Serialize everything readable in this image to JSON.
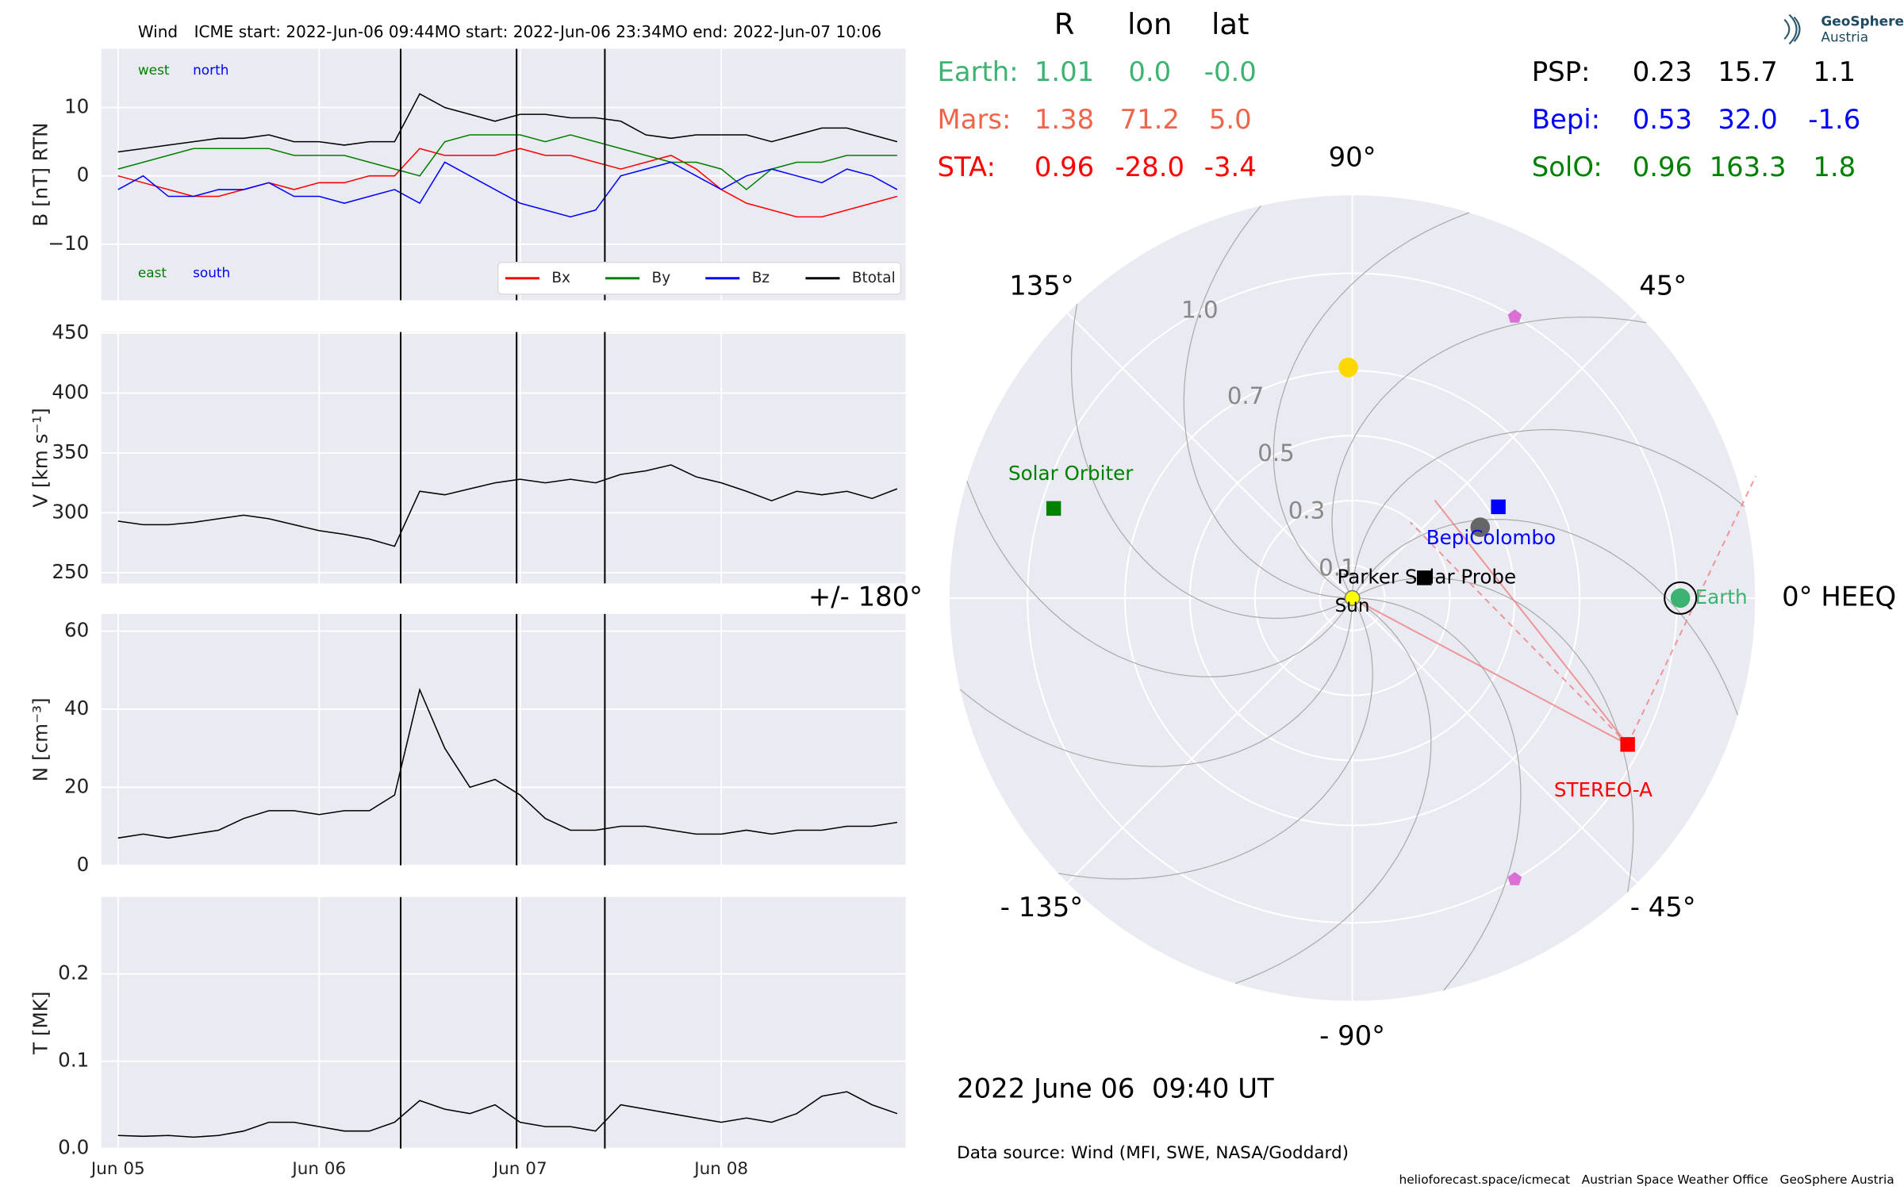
{
  "chart_data": [
    {
      "type": "line",
      "title": "Wind",
      "events": [
        {
          "label": "ICME start: 2022-Jun-06 09:44",
          "x": "2022-06-06T09:44"
        },
        {
          "label": "MO start: 2022-Jun-06 23:34",
          "x": "2022-06-06T23:34"
        },
        {
          "label": "MO end: 2022-Jun-07 10:06",
          "x": "2022-06-07T10:06"
        }
      ],
      "ylabel": "B [nT] RTN",
      "annotations": [
        {
          "text": "west",
          "color": "#008000"
        },
        {
          "text": "north",
          "color": "#0000ff"
        },
        {
          "text": "east",
          "color": "#008000"
        },
        {
          "text": "south",
          "color": "#0000ff"
        }
      ],
      "x": [
        "2022-06-05T00:00",
        "2022-06-05T03:00",
        "2022-06-05T06:00",
        "2022-06-05T09:00",
        "2022-06-05T12:00",
        "2022-06-05T15:00",
        "2022-06-05T18:00",
        "2022-06-05T21:00",
        "2022-06-06T00:00",
        "2022-06-06T03:00",
        "2022-06-06T06:00",
        "2022-06-06T09:00",
        "2022-06-06T12:00",
        "2022-06-06T15:00",
        "2022-06-06T18:00",
        "2022-06-06T21:00",
        "2022-06-07T00:00",
        "2022-06-07T03:00",
        "2022-06-07T06:00",
        "2022-06-07T09:00",
        "2022-06-07T12:00",
        "2022-06-07T15:00",
        "2022-06-07T18:00",
        "2022-06-07T21:00",
        "2022-06-08T00:00",
        "2022-06-08T03:00",
        "2022-06-08T06:00",
        "2022-06-08T09:00",
        "2022-06-08T12:00",
        "2022-06-08T15:00",
        "2022-06-08T18:00",
        "2022-06-08T21:00"
      ],
      "series": [
        {
          "name": "Bx",
          "color": "#ff0000",
          "values": [
            0,
            -1,
            -2,
            -3,
            -3,
            -2,
            -1,
            -2,
            -1,
            -1,
            0,
            0,
            4,
            3,
            3,
            3,
            4,
            3,
            3,
            2,
            1,
            2,
            3,
            1,
            -2,
            -4,
            -5,
            -6,
            -6,
            -5,
            -4,
            -3
          ]
        },
        {
          "name": "By",
          "color": "#008000",
          "values": [
            1,
            2,
            3,
            4,
            4,
            4,
            4,
            3,
            3,
            3,
            2,
            1,
            0,
            5,
            6,
            6,
            6,
            5,
            6,
            5,
            4,
            3,
            2,
            2,
            1,
            -2,
            1,
            2,
            2,
            3,
            3,
            3
          ]
        },
        {
          "name": "Bz",
          "color": "#0000ff",
          "values": [
            -2,
            0,
            -3,
            -3,
            -2,
            -2,
            -1,
            -3,
            -3,
            -4,
            -3,
            -2,
            -4,
            2,
            0,
            -2,
            -4,
            -5,
            -6,
            -5,
            0,
            1,
            2,
            0,
            -2,
            0,
            1,
            0,
            -1,
            1,
            0,
            -2
          ]
        },
        {
          "name": "Btotal",
          "color": "#000000",
          "values": [
            3.5,
            4,
            4.5,
            5,
            5.5,
            5.5,
            6,
            5,
            5,
            4.5,
            5,
            5,
            12,
            10,
            9,
            8,
            9,
            9,
            8.5,
            8.5,
            8,
            6,
            5.5,
            6,
            6,
            6,
            5,
            6,
            7,
            7,
            6,
            5
          ]
        }
      ],
      "ylim": [
        -18.2,
        18.6
      ],
      "yticks": [
        {
          "value": -10,
          "label": "−10"
        },
        0,
        10
      ],
      "grid": true
    },
    {
      "type": "line",
      "ylabel": "V [km s⁻¹]",
      "x": [
        "2022-06-05T00:00",
        "2022-06-05T03:00",
        "2022-06-05T06:00",
        "2022-06-05T09:00",
        "2022-06-05T12:00",
        "2022-06-05T15:00",
        "2022-06-05T18:00",
        "2022-06-05T21:00",
        "2022-06-06T00:00",
        "2022-06-06T03:00",
        "2022-06-06T06:00",
        "2022-06-06T09:00",
        "2022-06-06T12:00",
        "2022-06-06T15:00",
        "2022-06-06T18:00",
        "2022-06-06T21:00",
        "2022-06-07T00:00",
        "2022-06-07T03:00",
        "2022-06-07T06:00",
        "2022-06-07T09:00",
        "2022-06-07T12:00",
        "2022-06-07T15:00",
        "2022-06-07T18:00",
        "2022-06-07T21:00",
        "2022-06-08T00:00",
        "2022-06-08T03:00",
        "2022-06-08T06:00",
        "2022-06-08T09:00",
        "2022-06-08T12:00",
        "2022-06-08T15:00",
        "2022-06-08T18:00",
        "2022-06-08T21:00"
      ],
      "values": [
        293,
        290,
        290,
        292,
        295,
        298,
        295,
        290,
        285,
        282,
        278,
        272,
        318,
        315,
        320,
        325,
        328,
        325,
        328,
        325,
        332,
        335,
        340,
        330,
        325,
        318,
        310,
        318,
        315,
        318,
        312,
        320
      ],
      "color": "#000000",
      "ylim": [
        241,
        451
      ],
      "yticks": [
        250,
        300,
        350,
        400,
        450
      ],
      "grid": true
    },
    {
      "type": "line",
      "ylabel": "N [cm⁻³]",
      "x": [
        "2022-06-05T00:00",
        "2022-06-05T03:00",
        "2022-06-05T06:00",
        "2022-06-05T09:00",
        "2022-06-05T12:00",
        "2022-06-05T15:00",
        "2022-06-05T18:00",
        "2022-06-05T21:00",
        "2022-06-06T00:00",
        "2022-06-06T03:00",
        "2022-06-06T06:00",
        "2022-06-06T09:00",
        "2022-06-06T12:00",
        "2022-06-06T15:00",
        "2022-06-06T18:00",
        "2022-06-06T21:00",
        "2022-06-07T00:00",
        "2022-06-07T03:00",
        "2022-06-07T06:00",
        "2022-06-07T09:00",
        "2022-06-07T12:00",
        "2022-06-07T15:00",
        "2022-06-07T18:00",
        "2022-06-07T21:00",
        "2022-06-08T00:00",
        "2022-06-08T03:00",
        "2022-06-08T06:00",
        "2022-06-08T09:00",
        "2022-06-08T12:00",
        "2022-06-08T15:00",
        "2022-06-08T18:00",
        "2022-06-08T21:00"
      ],
      "values": [
        7,
        8,
        7,
        8,
        9,
        12,
        14,
        14,
        13,
        14,
        14,
        18,
        45,
        30,
        20,
        22,
        18,
        12,
        9,
        9,
        10,
        10,
        9,
        8,
        8,
        9,
        8,
        9,
        9,
        10,
        10,
        11
      ],
      "color": "#000000",
      "ylim": [
        0,
        64.4
      ],
      "yticks": [
        0,
        20,
        40,
        60
      ],
      "grid": true
    },
    {
      "type": "line",
      "ylabel": "T [MK]",
      "x": [
        "2022-06-05T00:00",
        "2022-06-05T03:00",
        "2022-06-05T06:00",
        "2022-06-05T09:00",
        "2022-06-05T12:00",
        "2022-06-05T15:00",
        "2022-06-05T18:00",
        "2022-06-05T21:00",
        "2022-06-06T00:00",
        "2022-06-06T03:00",
        "2022-06-06T06:00",
        "2022-06-06T09:00",
        "2022-06-06T12:00",
        "2022-06-06T15:00",
        "2022-06-06T18:00",
        "2022-06-06T21:00",
        "2022-06-07T00:00",
        "2022-06-07T03:00",
        "2022-06-07T06:00",
        "2022-06-07T09:00",
        "2022-06-07T12:00",
        "2022-06-07T15:00",
        "2022-06-07T18:00",
        "2022-06-07T21:00",
        "2022-06-08T00:00",
        "2022-06-08T03:00",
        "2022-06-08T06:00",
        "2022-06-08T09:00",
        "2022-06-08T12:00",
        "2022-06-08T15:00",
        "2022-06-08T18:00",
        "2022-06-08T21:00"
      ],
      "values": [
        0.015,
        0.014,
        0.015,
        0.013,
        0.015,
        0.02,
        0.03,
        0.03,
        0.025,
        0.02,
        0.02,
        0.03,
        0.055,
        0.045,
        0.04,
        0.05,
        0.03,
        0.025,
        0.025,
        0.02,
        0.05,
        0.045,
        0.04,
        0.035,
        0.03,
        0.035,
        0.03,
        0.04,
        0.06,
        0.065,
        0.05,
        0.04
      ],
      "color": "#000000",
      "ylim": [
        0,
        0.288
      ],
      "yticks": [
        {
          "value": 0,
          "label": "0.0"
        },
        0.1,
        0.2
      ],
      "grid": true,
      "xlim": [
        "2022-06-04T22:00",
        "2022-06-08T22:00"
      ],
      "xticks": [
        {
          "value": "2022-06-05T00:00",
          "label": "Jun 05"
        },
        {
          "value": "2022-06-06T00:00",
          "label": "Jun 06"
        },
        {
          "value": "2022-06-07T00:00",
          "label": "Jun 07"
        },
        {
          "value": "2022-06-08T00:00",
          "label": "Jun 08"
        }
      ]
    },
    {
      "type": "polar",
      "time_label": "2022 June 06  09:40 UT",
      "data_source": "Data source: Wind (MFI, SWE, NASA/Goddard)",
      "columns": [
        "R",
        "lon",
        "lat"
      ],
      "bodies": [
        {
          "name": "Earth:",
          "plot_label": "Earth",
          "color": "#3cb371",
          "marker": "circle",
          "r": 1.01,
          "lon": {
            "value": 0,
            "label": "0.0"
          },
          "lat": {
            "value": 0,
            "label": "-0.0"
          }
        },
        {
          "name": "Mars:",
          "color": "#f0654a",
          "r": 1.38,
          "lon": 71.2,
          "lat": {
            "value": 5,
            "label": "5.0"
          }
        },
        {
          "name": "STA:",
          "plot_label": "STEREO-A",
          "color": "#ff0000",
          "marker": "square",
          "r": 0.96,
          "lon": {
            "value": -28,
            "label": "-28.0"
          },
          "lat": -3.4
        },
        {
          "name": "PSP:",
          "plot_label": "Parker Solar Probe",
          "color": "#000000",
          "marker": "square",
          "r": 0.23,
          "lon": 15.7,
          "lat": 1.1
        },
        {
          "name": "Bepi:",
          "plot_label": "BepiColombo",
          "color": "#0000ff",
          "marker": "square",
          "r": 0.53,
          "lon": {
            "value": 32,
            "label": "32.0"
          },
          "lat": -1.6
        },
        {
          "name": "SolO:",
          "plot_label": "Solar Orbiter",
          "color": "#008000",
          "marker": "square",
          "r": 0.96,
          "lon": 163.3,
          "lat": 1.8
        }
      ],
      "other_markers": [
        {
          "r": 0.71,
          "lon": 91,
          "color": "#ffd700",
          "marker": "circle"
        },
        {
          "r": 0.45,
          "lon": 29,
          "color": "#666666",
          "marker": "circle"
        },
        {
          "r": 1,
          "lon": 60,
          "color": "#da70d6",
          "marker": "pentagon"
        },
        {
          "r": 1,
          "lon": -60,
          "color": "#da70d6",
          "marker": "pentagon"
        }
      ],
      "sun": {
        "label": "Sun",
        "color": "#ffff00"
      },
      "rlim": [
        0,
        1.24
      ],
      "rticks": [
        0.1,
        0.3,
        0.5,
        0.7,
        {
          "value": 1,
          "label": "1.0"
        }
      ],
      "thetaticks": [
        {
          "value": 0,
          "label": "0° HEEQ"
        },
        {
          "value": 45,
          "label": "45°"
        },
        {
          "value": 90,
          "label": "90°"
        },
        {
          "value": 135,
          "label": "135°"
        },
        {
          "value": 180,
          "label": "+/- 180°"
        },
        {
          "value": -135,
          "label": "- 135°"
        },
        {
          "value": -90,
          "label": "- 90°"
        },
        {
          "value": -45,
          "label": "- 45°"
        }
      ]
    }
  ],
  "logo": {
    "title": "GeoSphere",
    "subtitle": "Austria"
  },
  "credits": "helioforecast.space/icmecat   Austrian Space Weather Office   GeoSphere Austria"
}
